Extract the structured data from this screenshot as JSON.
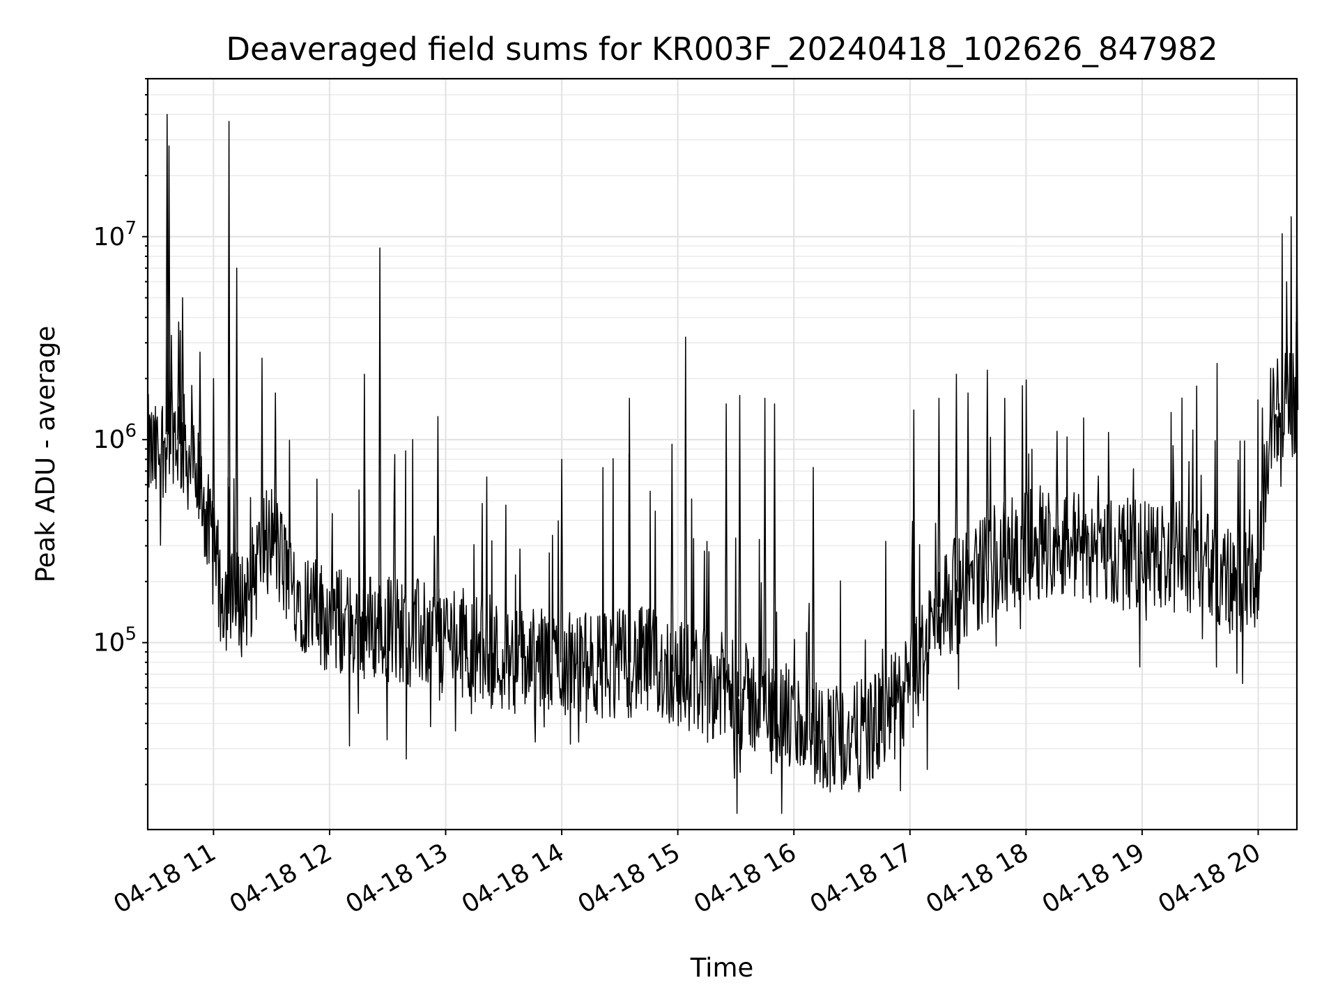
{
  "chart_data": {
    "type": "line",
    "title": "Deaveraged field sums for KR003F_20240418_102626_847982",
    "xlabel": "Time",
    "ylabel": "Peak ADU - average",
    "yscale": "log",
    "grid": true,
    "xlim": [
      "2024-04-18T10:26:00",
      "2024-04-18T20:20:00"
    ],
    "ylim": [
      12000,
      60000000
    ],
    "x_ticks": [
      "04-18 11",
      "04-18 12",
      "04-18 13",
      "04-18 14",
      "04-18 15",
      "04-18 16",
      "04-18 17",
      "04-18 18",
      "04-18 19",
      "04-18 20"
    ],
    "y_ticks": [
      {
        "base": "10",
        "exp": "5",
        "value": 100000
      },
      {
        "base": "10",
        "exp": "6",
        "value": 1000000
      },
      {
        "base": "10",
        "exp": "7",
        "value": 10000000
      }
    ],
    "series": [
      {
        "color": "#000000",
        "x": [
          "2024-04-18T10:26:00",
          "2024-04-18T10:30:00",
          "2024-04-18T10:35:00",
          "2024-04-18T10:38:00",
          "2024-04-18T10:40:00",
          "2024-04-18T10:42:00",
          "2024-04-18T10:45:00",
          "2024-04-18T10:50:00",
          "2024-04-18T10:55:00",
          "2024-04-18T11:00:00",
          "2024-04-18T11:05:00",
          "2024-04-18T11:10:00",
          "2024-04-18T11:15:00",
          "2024-04-18T11:20:00",
          "2024-04-18T11:25:00",
          "2024-04-18T11:30:00",
          "2024-04-18T11:35:00",
          "2024-04-18T11:40:00",
          "2024-04-18T11:50:00",
          "2024-04-18T12:00:00",
          "2024-04-18T12:15:00",
          "2024-04-18T12:30:00",
          "2024-04-18T12:45:00",
          "2024-04-18T13:00:00",
          "2024-04-18T13:15:00",
          "2024-04-18T13:30:00",
          "2024-04-18T13:45:00",
          "2024-04-18T14:00:00",
          "2024-04-18T14:15:00",
          "2024-04-18T14:30:00",
          "2024-04-18T14:45:00",
          "2024-04-18T15:00:00",
          "2024-04-18T15:15:00",
          "2024-04-18T15:30:00",
          "2024-04-18T15:45:00",
          "2024-04-18T16:00:00",
          "2024-04-18T16:15:00",
          "2024-04-18T16:30:00",
          "2024-04-18T16:45:00",
          "2024-04-18T17:00:00",
          "2024-04-18T17:15:00",
          "2024-04-18T17:30:00",
          "2024-04-18T17:45:00",
          "2024-04-18T18:00:00",
          "2024-04-18T18:15:00",
          "2024-04-18T18:30:00",
          "2024-04-18T18:45:00",
          "2024-04-18T19:00:00",
          "2024-04-18T19:15:00",
          "2024-04-18T19:30:00",
          "2024-04-18T19:45:00",
          "2024-04-18T20:00:00",
          "2024-04-18T20:03:00",
          "2024-04-18T20:06:00",
          "2024-04-18T20:10:00",
          "2024-04-18T20:15:00",
          "2024-04-18T20:20:00"
        ],
        "y": [
          900000,
          800000,
          1000000,
          1200000,
          1100000,
          1000000,
          900000,
          700000,
          500000,
          250000,
          180000,
          150000,
          160000,
          200000,
          300000,
          350000,
          250000,
          200000,
          150000,
          130000,
          120000,
          120000,
          110000,
          110000,
          95000,
          85000,
          80000,
          80000,
          75000,
          80000,
          80000,
          70000,
          65000,
          55000,
          50000,
          40000,
          35000,
          33000,
          40000,
          60000,
          150000,
          200000,
          250000,
          300000,
          320000,
          300000,
          280000,
          270000,
          270000,
          250000,
          200000,
          180000,
          500000,
          1200000,
          1400000,
          1500000,
          1400000
        ],
        "spikes": [
          {
            "x": "2024-04-18T10:36:00",
            "y": 40000000
          },
          {
            "x": "2024-04-18T10:37:00",
            "y": 28000000
          },
          {
            "x": "2024-04-18T10:36:30",
            "y": 4500000
          },
          {
            "x": "2024-04-18T10:44:00",
            "y": 5000000
          },
          {
            "x": "2024-04-18T10:42:00",
            "y": 3800000
          },
          {
            "x": "2024-04-18T10:53:00",
            "y": 2700000
          },
          {
            "x": "2024-04-18T11:00:00",
            "y": 2000000
          },
          {
            "x": "2024-04-18T11:08:00",
            "y": 37000000
          },
          {
            "x": "2024-04-18T11:12:00",
            "y": 7000000
          },
          {
            "x": "2024-04-18T11:32:00",
            "y": 1700000
          },
          {
            "x": "2024-04-18T12:18:00",
            "y": 2100000
          },
          {
            "x": "2024-04-18T12:26:00",
            "y": 8800000
          },
          {
            "x": "2024-04-18T12:56:00",
            "y": 1300000
          },
          {
            "x": "2024-04-18T14:00:00",
            "y": 800000
          },
          {
            "x": "2024-04-18T14:35:00",
            "y": 1600000
          },
          {
            "x": "2024-04-18T14:57:00",
            "y": 950000
          },
          {
            "x": "2024-04-18T15:04:00",
            "y": 3200000
          },
          {
            "x": "2024-04-18T15:25:00",
            "y": 1500000
          },
          {
            "x": "2024-04-18T15:32:00",
            "y": 1650000
          },
          {
            "x": "2024-04-18T15:45:00",
            "y": 1600000
          },
          {
            "x": "2024-04-18T15:50:00",
            "y": 1500000
          },
          {
            "x": "2024-04-18T16:10:00",
            "y": 730000
          },
          {
            "x": "2024-04-18T17:02:00",
            "y": 1400000
          },
          {
            "x": "2024-04-18T17:15:00",
            "y": 1600000
          },
          {
            "x": "2024-04-18T17:24:00",
            "y": 2100000
          },
          {
            "x": "2024-04-18T17:30:00",
            "y": 1700000
          },
          {
            "x": "2024-04-18T17:40:00",
            "y": 2200000
          },
          {
            "x": "2024-04-18T17:49:00",
            "y": 1600000
          },
          {
            "x": "2024-04-18T18:16:00",
            "y": 1100000
          },
          {
            "x": "2024-04-18T20:10:00",
            "y": 2500000
          },
          {
            "x": "2024-04-18T20:15:00",
            "y": 2900000
          },
          {
            "x": "2024-04-18T20:20:00",
            "y": 9300000
          }
        ]
      }
    ]
  }
}
